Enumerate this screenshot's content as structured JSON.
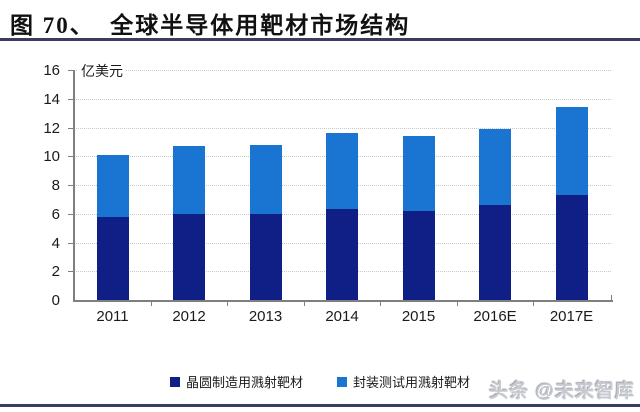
{
  "header": {
    "title": "图 70、  全球半导体用靶材市场结构"
  },
  "watermark": {
    "text": "头条 @未来智库"
  },
  "chart_data": {
    "type": "bar",
    "stacked": true,
    "title": "全球半导体用靶材市场结构",
    "unit_label": "亿美元",
    "categories": [
      "2011",
      "2012",
      "2013",
      "2014",
      "2015",
      "2016E",
      "2017E"
    ],
    "series": [
      {
        "name": "晶圆制造用溅射靶材",
        "color": "#101f85",
        "values": [
          5.8,
          6.0,
          6.0,
          6.3,
          6.2,
          6.6,
          7.3
        ]
      },
      {
        "name": "封装测试用溅射靶材",
        "color": "#1a75d2",
        "values": [
          4.3,
          4.7,
          4.8,
          5.3,
          5.2,
          5.3,
          6.1
        ]
      }
    ],
    "totals": [
      10.1,
      10.7,
      10.8,
      11.6,
      11.4,
      11.9,
      13.4
    ],
    "ylim": [
      0,
      16
    ],
    "yticks": [
      0,
      2,
      4,
      6,
      8,
      10,
      12,
      14,
      16
    ],
    "grid": "horizontal-dotted",
    "legend_position": "bottom",
    "colors": {
      "wafer_series": "#101f85",
      "packaging_series": "#1a75d2",
      "axis": "#7f7f7f",
      "gridline": "#c7c7c7",
      "rule": "#3b3c5f"
    }
  }
}
